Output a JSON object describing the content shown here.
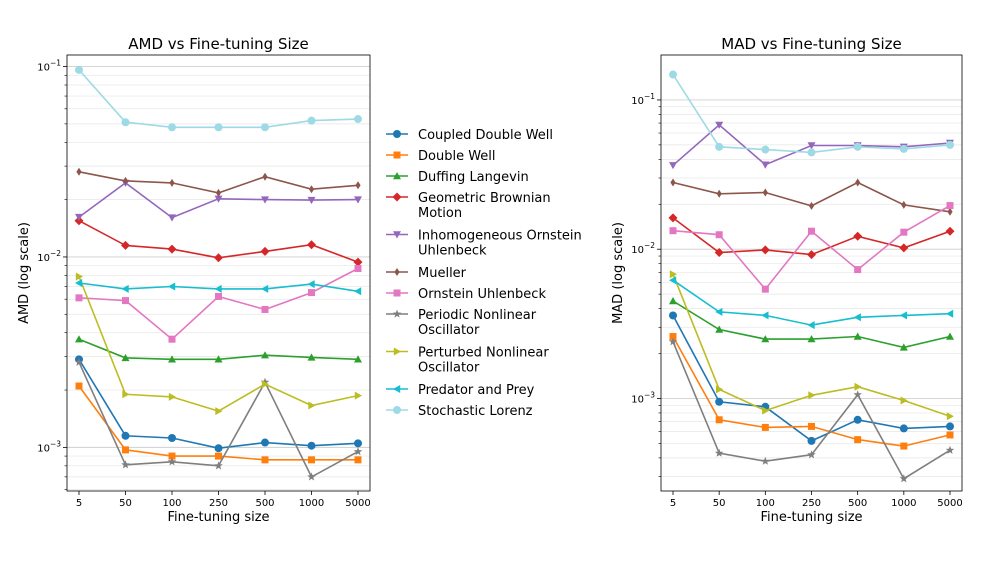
{
  "chart_data": [
    {
      "type": "line",
      "title": "AMD vs Fine-tuning Size",
      "xlabel": "Fine-tuning size",
      "ylabel": "AMD (log scale)",
      "yscale": "log",
      "ylim": [
        0.00059,
        0.115
      ],
      "x": [
        "5",
        "50",
        "100",
        "250",
        "500",
        "1000",
        "5000"
      ],
      "y_major_ticks": [
        {
          "value": 0.1,
          "base": "10",
          "exp": "−1"
        },
        {
          "value": 0.01,
          "base": "10",
          "exp": "−2"
        },
        {
          "value": 0.001,
          "base": "10",
          "exp": "−3"
        }
      ],
      "series": [
        {
          "name": "Coupled Double Well",
          "values": [
            0.0029,
            0.00115,
            0.00112,
            0.00099,
            0.00106,
            0.00102,
            0.00105
          ]
        },
        {
          "name": "Double Well",
          "values": [
            0.0021,
            0.00097,
            0.0009,
            0.0009,
            0.00086,
            0.00086,
            0.00086
          ]
        },
        {
          "name": "Duffing Langevin",
          "values": [
            0.0037,
            0.00295,
            0.0029,
            0.0029,
            0.00305,
            0.00297,
            0.0029
          ]
        },
        {
          "name": "Geometric Brownian Motion",
          "values": [
            0.0155,
            0.0115,
            0.011,
            0.0099,
            0.0107,
            0.0116,
            0.0094
          ]
        },
        {
          "name": "Inhomogeneous Ornstein Uhlenbeck",
          "values": [
            0.0162,
            0.0245,
            0.0161,
            0.0202,
            0.02,
            0.0199,
            0.02
          ]
        },
        {
          "name": "Mueller",
          "values": [
            0.028,
            0.0251,
            0.0245,
            0.0217,
            0.0264,
            0.0227,
            0.0238
          ]
        },
        {
          "name": "Ornstein Uhlenbeck",
          "values": [
            0.0061,
            0.0059,
            0.0037,
            0.0062,
            0.0053,
            0.0065,
            0.0087
          ]
        },
        {
          "name": "Periodic Nonlinear Oscillator",
          "values": [
            0.0028,
            0.00081,
            0.00084,
            0.0008,
            0.0022,
            0.0007,
            0.00095
          ]
        },
        {
          "name": "Perturbed Nonlinear Oscillator",
          "values": [
            0.0079,
            0.0019,
            0.00184,
            0.00155,
            0.00215,
            0.00166,
            0.00187
          ]
        },
        {
          "name": "Predator and Prey",
          "values": [
            0.0073,
            0.0068,
            0.007,
            0.0068,
            0.0068,
            0.0072,
            0.0066
          ]
        },
        {
          "name": "Stochastic Lorenz",
          "values": [
            0.096,
            0.051,
            0.048,
            0.048,
            0.048,
            0.052,
            0.053
          ]
        }
      ]
    },
    {
      "type": "line",
      "title": "MAD vs Fine-tuning Size",
      "xlabel": "Fine-tuning size",
      "ylabel": "MAD (log scale)",
      "yscale": "log",
      "ylim": [
        0.00024,
        0.2
      ],
      "x": [
        "5",
        "50",
        "100",
        "250",
        "500",
        "1000",
        "5000"
      ],
      "y_major_ticks": [
        {
          "value": 0.1,
          "base": "10",
          "exp": "−1"
        },
        {
          "value": 0.01,
          "base": "10",
          "exp": "−2"
        },
        {
          "value": 0.001,
          "base": "10",
          "exp": "−3"
        }
      ],
      "series": [
        {
          "name": "Coupled Double Well",
          "values": [
            0.0036,
            0.00095,
            0.00088,
            0.00052,
            0.00072,
            0.00063,
            0.00065
          ]
        },
        {
          "name": "Double Well",
          "values": [
            0.0026,
            0.00072,
            0.00064,
            0.00065,
            0.00053,
            0.00048,
            0.00057
          ]
        },
        {
          "name": "Duffing Langevin",
          "values": [
            0.0045,
            0.0029,
            0.0025,
            0.0025,
            0.0026,
            0.0022,
            0.0026
          ]
        },
        {
          "name": "Geometric Brownian Motion",
          "values": [
            0.0162,
            0.0095,
            0.0099,
            0.0092,
            0.0122,
            0.0102,
            0.0132
          ]
        },
        {
          "name": "Inhomogeneous Ornstein Uhlenbeck",
          "values": [
            0.0365,
            0.068,
            0.0368,
            0.0495,
            0.0495,
            0.0485,
            0.0515
          ]
        },
        {
          "name": "Mueller",
          "values": [
            0.028,
            0.0235,
            0.024,
            0.0195,
            0.028,
            0.0198,
            0.0178
          ]
        },
        {
          "name": "Ornstein Uhlenbeck",
          "values": [
            0.0133,
            0.0125,
            0.0054,
            0.0132,
            0.0073,
            0.013,
            0.0196
          ]
        },
        {
          "name": "Periodic Nonlinear Oscillator",
          "values": [
            0.0024,
            0.00043,
            0.00038,
            0.00042,
            0.00106,
            0.00029,
            0.00045
          ]
        },
        {
          "name": "Perturbed Nonlinear Oscillator",
          "values": [
            0.0068,
            0.00115,
            0.00083,
            0.00105,
            0.0012,
            0.00097,
            0.00076
          ]
        },
        {
          "name": "Predator and Prey",
          "values": [
            0.0062,
            0.0038,
            0.0036,
            0.0031,
            0.0035,
            0.0036,
            0.0037
          ]
        },
        {
          "name": "Stochastic Lorenz",
          "values": [
            0.148,
            0.0485,
            0.0465,
            0.0445,
            0.0485,
            0.047,
            0.05
          ]
        }
      ]
    }
  ],
  "styles": [
    {
      "color": "#1f77b4",
      "marker": "circle"
    },
    {
      "color": "#ff7f0e",
      "marker": "square"
    },
    {
      "color": "#2ca02c",
      "marker": "triangle-up"
    },
    {
      "color": "#d62728",
      "marker": "diamond"
    },
    {
      "color": "#9467bd",
      "marker": "triangle-down"
    },
    {
      "color": "#8c564b",
      "marker": "thin-diamond"
    },
    {
      "color": "#e377c2",
      "marker": "square"
    },
    {
      "color": "#7f7f7f",
      "marker": "star"
    },
    {
      "color": "#bcbd22",
      "marker": "triangle-right"
    },
    {
      "color": "#17becf",
      "marker": "triangle-left"
    },
    {
      "color": "#9edae5",
      "marker": "circle"
    }
  ],
  "legend": {
    "placement": "center",
    "entries": [
      [
        "Coupled Double Well"
      ],
      [
        "Double Well"
      ],
      [
        "Duffing Langevin"
      ],
      [
        "Geometric Brownian",
        "Motion"
      ],
      [
        "Inhomogeneous Ornstein",
        "Uhlenbeck"
      ],
      [
        "Mueller"
      ],
      [
        "Ornstein Uhlenbeck"
      ],
      [
        "Periodic Nonlinear",
        "Oscillator"
      ],
      [
        "Perturbed Nonlinear",
        "Oscillator"
      ],
      [
        "Predator and Prey"
      ],
      [
        "Stochastic Lorenz"
      ]
    ]
  }
}
